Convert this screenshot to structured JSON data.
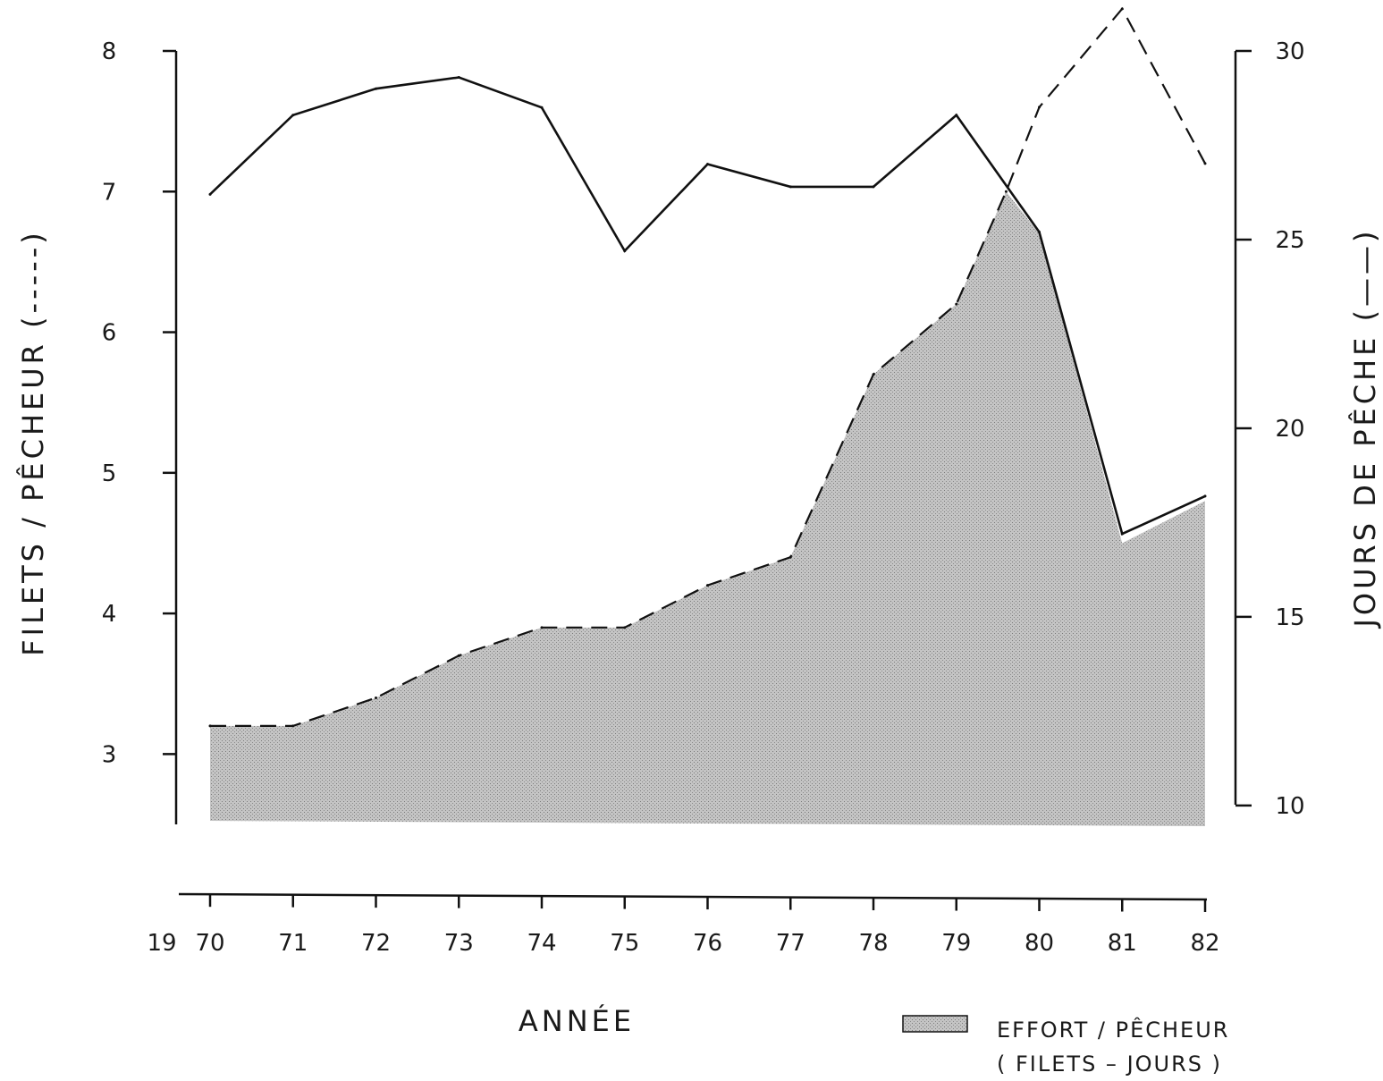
{
  "chart_data": {
    "type": "line",
    "title": "",
    "x_prefix_label": "19",
    "xlabel": "ANNÉE",
    "ylabel_left": "FILETS / PÊCHEUR (-----)",
    "ylabel_right": "JOURS DE PÊCHE (——)",
    "x": [
      70,
      71,
      72,
      73,
      74,
      75,
      76,
      77,
      78,
      79,
      80,
      81,
      82
    ],
    "x_tick_labels": [
      "70",
      "71",
      "72",
      "73",
      "74",
      "75",
      "76",
      "77",
      "78",
      "79",
      "80",
      "81",
      "82"
    ],
    "ylim_left": [
      2.5,
      8
    ],
    "ylim_right": [
      9.5,
      30
    ],
    "y_left_ticks": [
      3,
      4,
      5,
      6,
      7,
      8
    ],
    "y_right_ticks": [
      10,
      15,
      20,
      25,
      30
    ],
    "series": [
      {
        "name": "FILETS / PÊCHEUR",
        "axis": "left",
        "style": "dashed",
        "x": [
          70,
          71,
          72,
          73,
          74,
          75,
          76,
          77,
          78,
          79,
          79.6,
          80,
          81,
          82
        ],
        "values": [
          3.2,
          3.2,
          3.4,
          3.7,
          3.9,
          3.9,
          4.2,
          4.4,
          5.7,
          6.2,
          7.0,
          7.6,
          8.3,
          7.2
        ]
      },
      {
        "name": "JOURS DE PÊCHE",
        "axis": "right",
        "style": "solid",
        "x": [
          70,
          71,
          72,
          73,
          74,
          75,
          76,
          77,
          78,
          79,
          80,
          81,
          82
        ],
        "values": [
          26.2,
          28.3,
          29.0,
          29.3,
          28.5,
          24.7,
          27.0,
          26.4,
          26.4,
          28.3,
          25.2,
          17.2,
          18.2
        ]
      },
      {
        "name": "EFFORT / PÊCHEUR (FILETS - JOURS)",
        "axis": "left",
        "style": "shaded-area",
        "x": [
          70,
          71,
          72,
          73,
          74,
          75,
          76,
          77,
          78,
          79,
          79.6,
          80,
          81,
          82
        ],
        "values": [
          3.2,
          3.2,
          3.4,
          3.7,
          3.9,
          3.9,
          4.2,
          4.4,
          5.7,
          6.2,
          7.0,
          6.7,
          4.5,
          4.8
        ]
      }
    ],
    "legend": {
      "label_line1": "EFFORT / PÊCHEUR",
      "label_line2": "( FILETS – JOURS )",
      "placement": "bottom-right"
    },
    "grid": false
  },
  "colors": {
    "ink": "#111111",
    "area_fill": "#bdbdbd"
  }
}
